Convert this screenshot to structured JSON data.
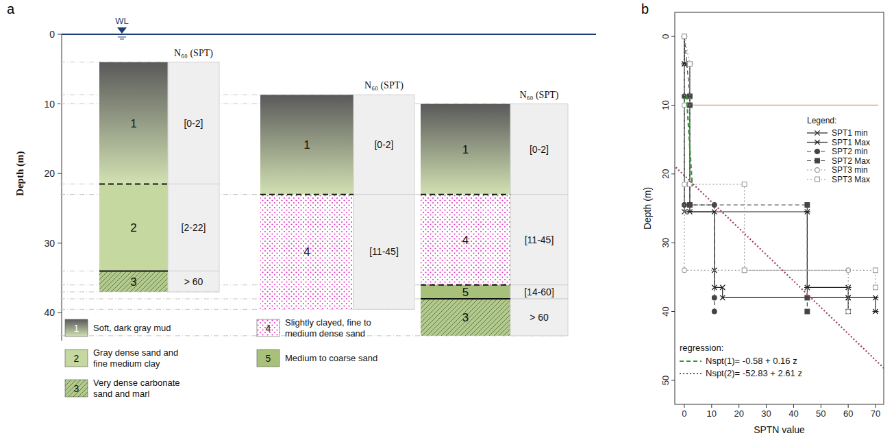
{
  "chart_data": [
    {
      "type": "profile",
      "panel_label": "a",
      "y_label": "Depth (m)",
      "ylim": [
        0,
        44
      ],
      "yticks": [
        0,
        10,
        20,
        30,
        40
      ],
      "water_level": {
        "label": "WL",
        "value": 0,
        "color": "#1f3b73"
      },
      "n60_header": "N₆₀ (SPT)",
      "columns": [
        {
          "layers": [
            {
              "label": "1",
              "top": 4,
              "bottom": 21.5,
              "line_style": "none",
              "n60": "[0-2]"
            },
            {
              "label": "2",
              "top": 21.5,
              "bottom": 34,
              "line_style": "dashed",
              "n60": "[2-22]"
            },
            {
              "label": "3",
              "top": 34,
              "bottom": 37,
              "line_style": "solid",
              "n60": "> 60"
            }
          ]
        },
        {
          "layers": [
            {
              "label": "1",
              "top": 8.7,
              "bottom": 23,
              "line_style": "none",
              "n60": "[0-2]"
            },
            {
              "label": "4",
              "top": 23,
              "bottom": 39.5,
              "line_style": "dashed",
              "n60": "[11-45]"
            }
          ]
        },
        {
          "layers": [
            {
              "label": "1",
              "top": 10,
              "bottom": 23,
              "line_style": "none",
              "n60": "[0-2]"
            },
            {
              "label": "4",
              "top": 23,
              "bottom": 36,
              "line_style": "dashed",
              "n60": "[11-45]"
            },
            {
              "label": "5",
              "top": 36,
              "bottom": 38,
              "line_style": "dashed",
              "n60": "[14-60]"
            },
            {
              "label": "3",
              "top": 38,
              "bottom": 43.3,
              "line_style": "solid",
              "n60": "> 60"
            }
          ]
        }
      ],
      "legend_items": [
        {
          "label": "1",
          "text": "Soft, dark gray mud",
          "color": "#5a5a5a"
        },
        {
          "label": "2",
          "text": "Gray dense sand and fine medium clay",
          "color": "#c5d89f"
        },
        {
          "label": "3",
          "text": "Very dense carbonate sand and marl",
          "color": "#b3c98d"
        },
        {
          "label": "4",
          "text": "Slightly clayed, fine to medium dense sand",
          "color": "#e03cc4"
        },
        {
          "label": "5",
          "text": "Medium to coarse sand",
          "color": "#a8c17a"
        }
      ]
    },
    {
      "type": "line",
      "panel_label": "b",
      "x_label": "SPTN value",
      "y_label": "Depth (m)",
      "xlim": [
        -3.5,
        73
      ],
      "ylim": [
        -3.5,
        53.5
      ],
      "xticks": [
        0,
        10,
        20,
        30,
        40,
        50,
        60,
        70
      ],
      "yticks": [
        0,
        10,
        20,
        30,
        40,
        50
      ],
      "legend": "right",
      "legend_title": "Legend:",
      "series": [
        {
          "name": "SPT1 min",
          "color": "#222222",
          "line_style": "solid",
          "marker": "x",
          "x": [
            0,
            0,
            0,
            11,
            11,
            11,
            14,
            14,
            60,
            60
          ],
          "values": [
            0,
            4,
            25.5,
            25.5,
            34,
            36.5,
            36.5,
            38,
            38,
            40
          ]
        },
        {
          "name": "SPT1 Max",
          "color": "#222222",
          "line_style": "solid",
          "marker": "asterisk",
          "x": [
            0,
            0,
            2,
            2,
            45,
            45,
            60,
            60,
            70,
            70
          ],
          "values": [
            0,
            4,
            4,
            25.5,
            25.5,
            36.5,
            36.5,
            38,
            38,
            40
          ]
        },
        {
          "name": "SPT2 min",
          "color": "#444444",
          "line_style": "dashed",
          "marker": "circle",
          "x": [
            0,
            0,
            0,
            11,
            11,
            11
          ],
          "values": [
            0,
            8.7,
            24.5,
            24.5,
            38,
            40
          ]
        },
        {
          "name": "SPT2 Max",
          "color": "#444444",
          "line_style": "dashed",
          "marker": "square",
          "x": [
            0,
            2,
            2,
            2,
            45,
            45,
            45
          ],
          "values": [
            0,
            8.7,
            10,
            24.5,
            24.5,
            38,
            40
          ]
        },
        {
          "name": "SPT3 min",
          "color": "#9a9a9a",
          "line_style": "dotted",
          "marker": "circle-open",
          "x": [
            0,
            0,
            0,
            0,
            60,
            60
          ],
          "values": [
            0,
            10,
            21.5,
            34,
            34,
            40
          ]
        },
        {
          "name": "SPT3 Max",
          "color": "#9a9a9a",
          "line_style": "dotted",
          "marker": "square-open",
          "x": [
            0,
            2,
            2,
            22,
            22,
            70,
            70
          ],
          "values": [
            0,
            4,
            21.5,
            21.5,
            34,
            34,
            36.5
          ]
        }
      ],
      "regression": {
        "title": "regression:",
        "series": [
          {
            "name": "Nspt(1)= -0.58 + 0.16 z",
            "color": "#2e9b2e",
            "line_style": "dashed",
            "x": [
              0.8,
              2.9
            ],
            "values": [
              8.6,
              21.7
            ]
          },
          {
            "name": "Nspt(2)= -52.83 + 2.61 z",
            "color": "#9b3a5a",
            "line_style": "dotted",
            "x": [
              -4,
              74
            ],
            "values": [
              18.7,
              48.6
            ]
          }
        ]
      },
      "hlines": [
        {
          "y": 10,
          "x": [
            0,
            71
          ],
          "color": "#c8a088"
        }
      ]
    }
  ]
}
